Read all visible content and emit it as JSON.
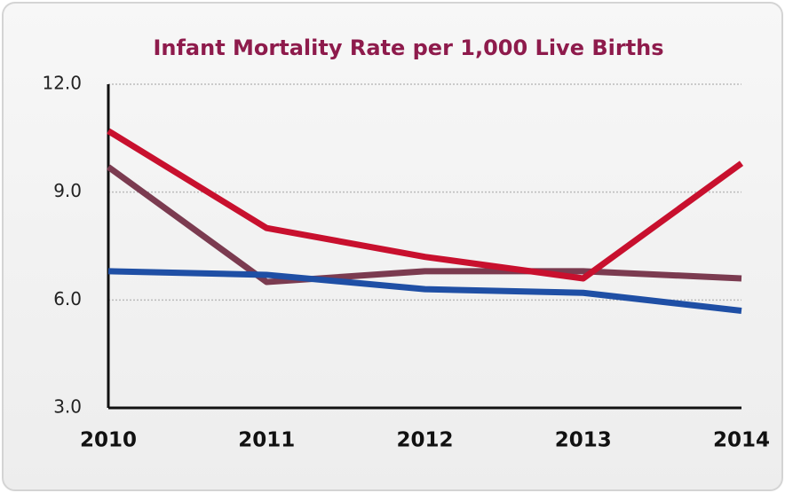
{
  "chart_data": {
    "type": "line",
    "title": "Infant Mortality Rate per 1,000 Live Births",
    "categories": [
      "2010",
      "2011",
      "2012",
      "2013",
      "2014"
    ],
    "series": [
      {
        "color": "#7b3b50",
        "values": [
          9.7,
          6.5,
          6.8,
          6.8,
          6.6
        ]
      },
      {
        "color": "#1f4fa5",
        "values": [
          6.8,
          6.7,
          6.3,
          6.2,
          5.7
        ]
      },
      {
        "color": "#c8102e",
        "values": [
          10.7,
          8.0,
          7.2,
          6.6,
          9.8
        ]
      }
    ],
    "ylim": [
      3,
      12
    ],
    "yticks": [
      {
        "value": 3,
        "label": "3.0"
      },
      {
        "value": 6,
        "label": "6.0"
      },
      {
        "value": 9,
        "label": "9.0"
      },
      {
        "value": 12,
        "label": "12.0"
      }
    ],
    "grid": true
  }
}
